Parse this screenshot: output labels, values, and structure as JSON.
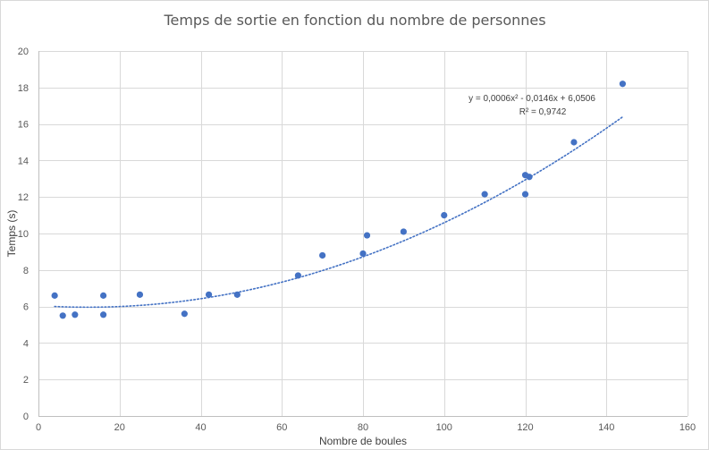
{
  "chart_data": {
    "type": "scatter",
    "title": "Temps de sortie en fonction du nombre de personnes",
    "xlabel": "Nombre de boules",
    "ylabel": "Temps (s)",
    "xlim": [
      0,
      160
    ],
    "ylim": [
      0,
      20
    ],
    "x_ticks": [
      0,
      20,
      40,
      60,
      80,
      100,
      120,
      140,
      160
    ],
    "y_ticks": [
      0,
      2,
      4,
      6,
      8,
      10,
      12,
      14,
      16,
      18,
      20
    ],
    "grid": true,
    "marker_color": "#4472c4",
    "trendline_color": "#4472c4",
    "series": [
      {
        "points": [
          {
            "x": 4,
            "y": 6.6
          },
          {
            "x": 6,
            "y": 5.5
          },
          {
            "x": 9,
            "y": 5.55
          },
          {
            "x": 16,
            "y": 6.6
          },
          {
            "x": 16,
            "y": 5.55
          },
          {
            "x": 25,
            "y": 6.65
          },
          {
            "x": 36,
            "y": 5.6
          },
          {
            "x": 42,
            "y": 6.65
          },
          {
            "x": 49,
            "y": 6.65
          },
          {
            "x": 64,
            "y": 7.7
          },
          {
            "x": 70,
            "y": 8.8
          },
          {
            "x": 80,
            "y": 8.9
          },
          {
            "x": 81,
            "y": 9.9
          },
          {
            "x": 90,
            "y": 10.1
          },
          {
            "x": 100,
            "y": 11
          },
          {
            "x": 110,
            "y": 12.15
          },
          {
            "x": 120,
            "y": 13.2
          },
          {
            "x": 120,
            "y": 12.15
          },
          {
            "x": 121,
            "y": 13.1
          },
          {
            "x": 132,
            "y": 15
          },
          {
            "x": 144,
            "y": 18.2
          }
        ]
      }
    ],
    "trendline": {
      "type": "polynomial",
      "degree": 2,
      "coefficients": [
        0.0006,
        -0.0146,
        6.0506
      ],
      "x_range": [
        4,
        144
      ],
      "style": "dotted",
      "equation": "y = 0,0006x² - 0,0146x + 6,0506",
      "r_squared": "R² = 0,9742"
    }
  }
}
